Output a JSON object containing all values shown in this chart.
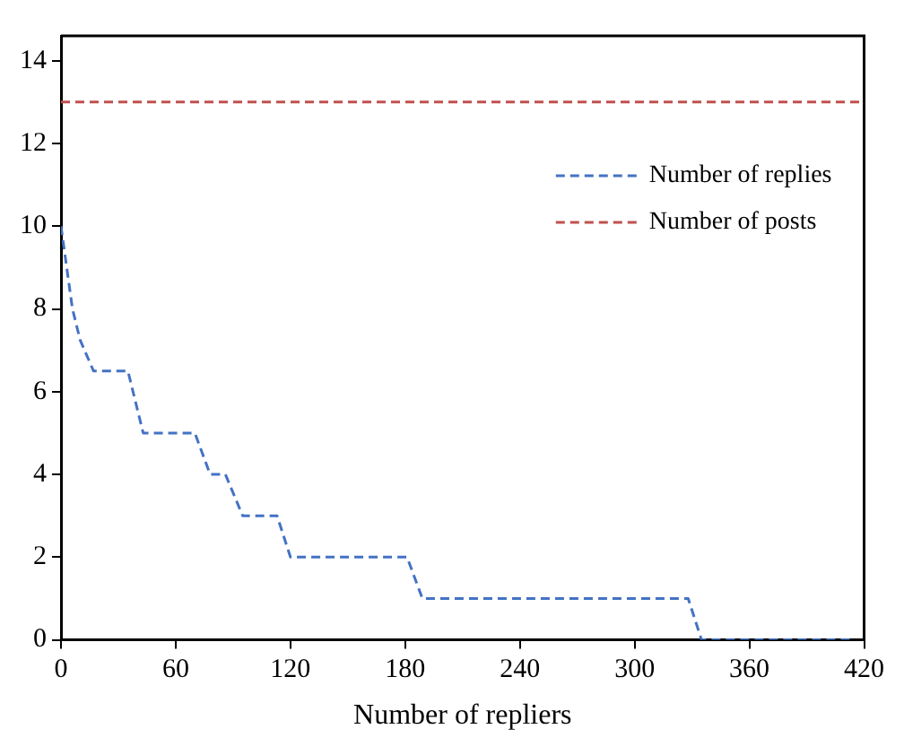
{
  "chart_data": {
    "type": "line",
    "xlabel": "Number of repliers",
    "series": [
      {
        "name": "Number of replies",
        "color": "#4472c4",
        "x": [
          0,
          6,
          10,
          17,
          35,
          43,
          70,
          78,
          86,
          95,
          113,
          120,
          181,
          189,
          328,
          335,
          415
        ],
        "values": [
          10,
          8,
          7.25,
          6.5,
          6.5,
          5,
          5,
          4,
          4,
          3,
          3,
          2,
          2,
          1,
          1,
          0,
          0
        ]
      },
      {
        "name": "Number of posts",
        "color": "#c0504d",
        "x": [
          0,
          420
        ],
        "values": [
          13,
          13
        ]
      }
    ],
    "xlim": [
      0,
      420
    ],
    "xticks": [
      0,
      60,
      120,
      180,
      240,
      300,
      360,
      420
    ],
    "ylim": [
      0,
      14.6
    ],
    "yticks": [
      0,
      2,
      4,
      6,
      8,
      10,
      12,
      14
    ],
    "grid": false,
    "legend": "top right",
    "marker": "none",
    "line_style": "dashed"
  }
}
